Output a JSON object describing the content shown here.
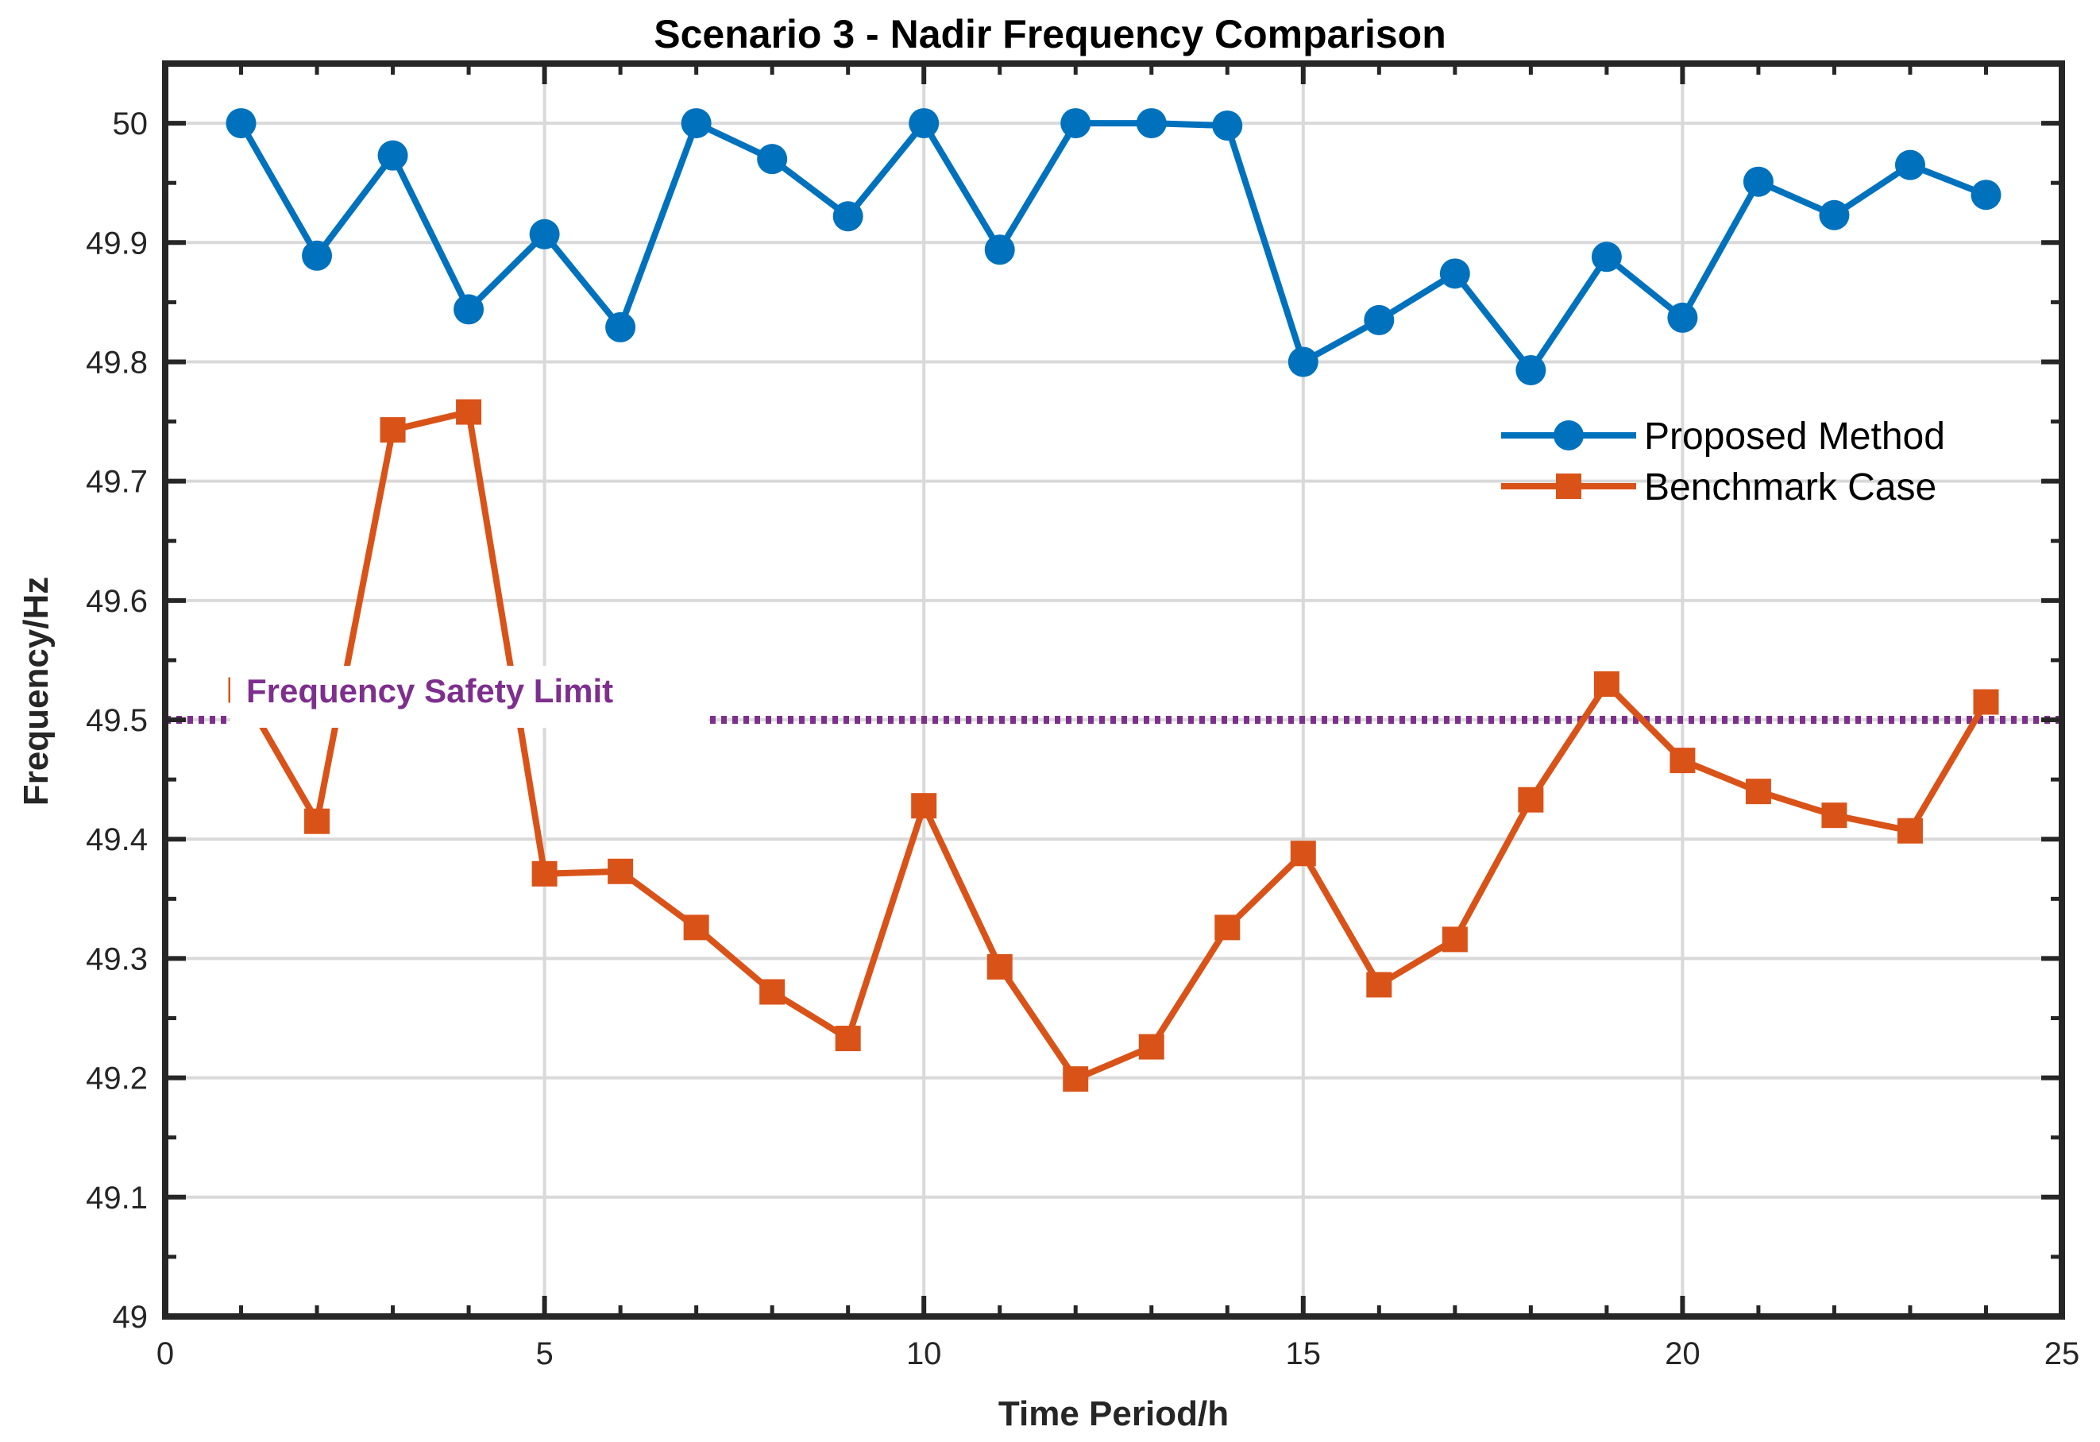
{
  "chart_data": {
    "type": "line",
    "title": "Scenario 3 - Nadir Frequency Comparison",
    "xlabel": "Time Period/h",
    "ylabel": "Frequency/Hz",
    "xlim": [
      0,
      25
    ],
    "ylim": [
      49,
      50.05
    ],
    "xticks": [
      0,
      5,
      10,
      15,
      20,
      25
    ],
    "yticks": [
      49,
      49.1,
      49.2,
      49.3,
      49.4,
      49.5,
      49.6,
      49.7,
      49.8,
      49.9,
      50
    ],
    "grid": true,
    "legend_position": "upper-right",
    "x": [
      1,
      2,
      3,
      4,
      5,
      6,
      7,
      8,
      9,
      10,
      11,
      12,
      13,
      14,
      15,
      16,
      17,
      18,
      19,
      20,
      21,
      22,
      23,
      24
    ],
    "series": [
      {
        "name": "Proposed Method",
        "color": "#0072BD",
        "marker": "circle",
        "values": [
          50.0,
          49.889,
          49.973,
          49.844,
          49.907,
          49.829,
          50.0,
          49.97,
          49.922,
          50.0,
          49.894,
          50.0,
          50.0,
          49.998,
          49.8,
          49.835,
          49.874,
          49.793,
          49.888,
          49.837,
          49.951,
          49.923,
          49.965,
          49.94
        ]
      },
      {
        "name": "Benchmark Case",
        "color": "#D95319",
        "marker": "square",
        "values": [
          49.525,
          49.415,
          49.743,
          49.758,
          49.371,
          49.373,
          49.326,
          49.272,
          49.233,
          49.428,
          49.293,
          49.199,
          49.226,
          49.326,
          49.388,
          49.278,
          49.316,
          49.433,
          49.53,
          49.466,
          49.44,
          49.42,
          49.407,
          49.515
        ]
      }
    ],
    "reference_line": {
      "label": "Frequency Safety Limit",
      "value": 49.5,
      "color": "#7E2F8E"
    }
  }
}
